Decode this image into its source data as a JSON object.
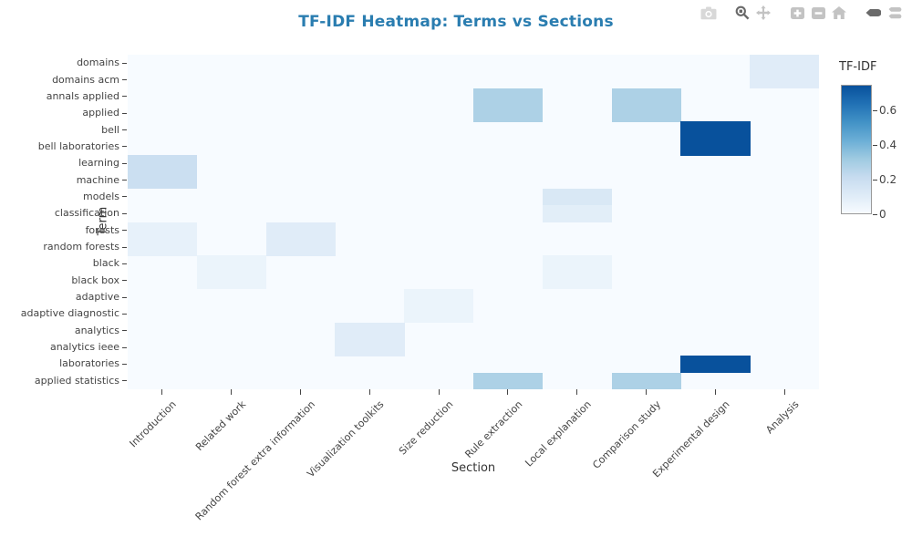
{
  "title": "TF-IDF Heatmap: Terms vs Sections",
  "modebar": {
    "icons": [
      {
        "name": "camera-icon",
        "action": "download-plot"
      },
      {
        "name": "zoom-icon",
        "action": "zoom-mode",
        "active": true
      },
      {
        "name": "pan-icon",
        "action": "pan-mode"
      },
      {
        "name": "zoom-in-icon",
        "action": "zoom-in"
      },
      {
        "name": "zoom-out-icon",
        "action": "zoom-out"
      },
      {
        "name": "home-icon",
        "action": "reset-axes"
      },
      {
        "name": "hover-closest-icon",
        "action": "toggle-show-closest",
        "active": true
      },
      {
        "name": "hover-compare-icon",
        "action": "toggle-compare-data"
      }
    ]
  },
  "colors": {
    "title": "#2a7db0",
    "tick_label": "#444444",
    "axis_title": "#333333",
    "modebar_inactive": "#c3c3c3",
    "modebar_light": "#d8d8d8",
    "modebar_active": "#6a6a6a",
    "colorbar_outline": "#999999"
  },
  "chart_data": {
    "type": "heatmap",
    "title": "TF-IDF Heatmap: Terms vs Sections",
    "xlabel": "Section",
    "ylabel": "Term",
    "colorscale_name": "Blues (truncated)",
    "colorscale_stops": [
      "#f7fbff",
      "#deebf7",
      "#c6dbef",
      "#9ecae1",
      "#6baed6",
      "#4292c6",
      "#2171b5",
      "#08519c"
    ],
    "zmin": 0,
    "zmax": 0.75,
    "grid": false,
    "legend_position": "right",
    "colorbar": {
      "title": "TF-IDF",
      "ticks": [
        0,
        0.2,
        0.4,
        0.6
      ],
      "tick_labels": [
        "0",
        "0.2",
        "0.4",
        "0.6"
      ]
    },
    "x_categories": [
      "Introduction",
      "Related work",
      "Random forest extra information",
      "Visualization toolkits",
      "Size reduction",
      "Rule extraction",
      "Local explanation",
      "Comparison study",
      "Experimental design",
      "Analysis"
    ],
    "y_categories": [
      "domains",
      "domains acm",
      "annals applied",
      "applied",
      "bell",
      "bell laboratories",
      "learning",
      "machine",
      "models",
      "classification",
      "forests",
      "random forests",
      "black",
      "black box",
      "adaptive",
      "adaptive diagnostic",
      "analytics",
      "analytics ieee",
      "laboratories",
      "applied statistics"
    ],
    "values": [
      [
        0,
        0,
        0,
        0,
        0,
        0,
        0,
        0,
        0,
        0.1
      ],
      [
        0,
        0,
        0,
        0,
        0,
        0,
        0,
        0,
        0,
        0.1
      ],
      [
        0,
        0,
        0,
        0,
        0,
        0.28,
        0,
        0.28,
        0,
        0
      ],
      [
        0,
        0,
        0,
        0,
        0,
        0.28,
        0,
        0.28,
        0,
        0
      ],
      [
        0,
        0,
        0,
        0,
        0,
        0,
        0,
        0,
        0.75,
        0
      ],
      [
        0,
        0,
        0,
        0,
        0,
        0,
        0,
        0,
        0.75,
        0
      ],
      [
        0.19,
        0,
        0,
        0,
        0,
        0,
        0,
        0,
        0,
        0
      ],
      [
        0.19,
        0,
        0,
        0,
        0,
        0,
        0,
        0,
        0,
        0
      ],
      [
        0,
        0,
        0,
        0,
        0,
        0,
        0.13,
        0,
        0,
        0
      ],
      [
        0,
        0,
        0,
        0,
        0,
        0,
        0.09,
        0,
        0,
        0
      ],
      [
        0.07,
        0,
        0.1,
        0,
        0,
        0,
        0,
        0,
        0,
        0
      ],
      [
        0.07,
        0,
        0.1,
        0,
        0,
        0,
        0,
        0,
        0,
        0
      ],
      [
        0,
        0.05,
        0,
        0,
        0,
        0,
        0.05,
        0,
        0,
        0
      ],
      [
        0,
        0.05,
        0,
        0,
        0,
        0,
        0.05,
        0,
        0,
        0
      ],
      [
        0,
        0,
        0,
        0,
        0.05,
        0,
        0,
        0,
        0,
        0
      ],
      [
        0,
        0,
        0,
        0,
        0.05,
        0,
        0,
        0,
        0,
        0
      ],
      [
        0,
        0,
        0,
        0.1,
        0,
        0,
        0,
        0,
        0,
        0
      ],
      [
        0,
        0,
        0,
        0.1,
        0,
        0,
        0,
        0,
        0,
        0
      ],
      [
        0,
        0,
        0,
        0,
        0,
        0,
        0,
        0,
        0.75,
        0
      ],
      [
        0,
        0,
        0,
        0,
        0,
        0.28,
        0,
        0.28,
        0,
        0
      ]
    ]
  }
}
